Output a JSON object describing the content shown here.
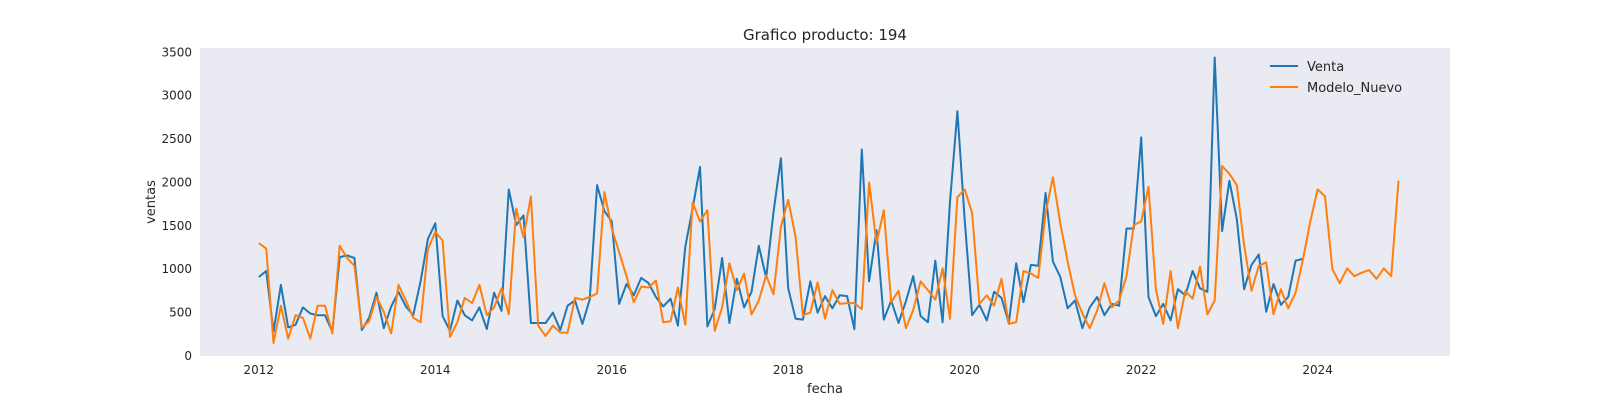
{
  "chart_data": {
    "type": "line",
    "title": "Grafico producto: 194",
    "xlabel": "fecha",
    "ylabel": "ventas",
    "x_ticks": [
      "2012",
      "2014",
      "2016",
      "2018",
      "2020",
      "2022",
      "2024"
    ],
    "y_ticks": [
      "0",
      "500",
      "1000",
      "1500",
      "2000",
      "2500",
      "3000",
      "3500"
    ],
    "xlim": [
      "2011-05",
      "2025-07"
    ],
    "ylim": [
      0,
      3550
    ],
    "grid": false,
    "legend_position": "top-right",
    "colors": {
      "plot_background": "#eaeaf2",
      "venta": "#1f77b4",
      "modelo_nuevo": "#ff7f0e"
    },
    "series": [
      {
        "name": "Venta",
        "start": "2012-01",
        "values": [
          910,
          980,
          280,
          820,
          330,
          360,
          560,
          490,
          470,
          470,
          280,
          1140,
          1160,
          1130,
          300,
          440,
          730,
          320,
          570,
          740,
          570,
          470,
          860,
          1350,
          1530,
          460,
          290,
          640,
          470,
          410,
          560,
          310,
          730,
          520,
          1920,
          1510,
          1620,
          380,
          380,
          380,
          500,
          300,
          580,
          640,
          370,
          650,
          1970,
          1670,
          1550,
          600,
          830,
          700,
          900,
          840,
          680,
          570,
          660,
          350,
          1260,
          1700,
          2180,
          340,
          540,
          1130,
          380,
          890,
          560,
          740,
          1270,
          900,
          1660,
          2280,
          780,
          430,
          420,
          860,
          500,
          690,
          550,
          700,
          690,
          310,
          2380,
          860,
          1450,
          420,
          640,
          380,
          630,
          920,
          460,
          390,
          1100,
          390,
          1780,
          2820,
          1570,
          470,
          590,
          410,
          740,
          670,
          380,
          1070,
          620,
          1050,
          1040,
          1880,
          1090,
          910,
          550,
          640,
          320,
          560,
          680,
          470,
          600,
          580,
          1470,
          1470,
          2520,
          680,
          460,
          600,
          410,
          770,
          700,
          980,
          780,
          740,
          3440,
          1440,
          2020,
          1580,
          770,
          1050,
          1170,
          510,
          830,
          590,
          680,
          1100,
          1120
        ]
      },
      {
        "name": "Modelo_Nuevo",
        "start": "2012-01",
        "values": [
          1300,
          1240,
          150,
          580,
          200,
          470,
          440,
          200,
          580,
          580,
          260,
          1270,
          1130,
          1040,
          330,
          400,
          680,
          510,
          260,
          820,
          640,
          440,
          390,
          1230,
          1430,
          1330,
          220,
          390,
          670,
          610,
          820,
          470,
          560,
          780,
          480,
          1700,
          1370,
          1840,
          350,
          230,
          350,
          270,
          270,
          670,
          650,
          680,
          720,
          1890,
          1470,
          1200,
          920,
          620,
          800,
          790,
          870,
          390,
          400,
          790,
          360,
          1770,
          1550,
          1680,
          290,
          560,
          1070,
          760,
          950,
          480,
          640,
          930,
          710,
          1490,
          1800,
          1370,
          470,
          500,
          850,
          430,
          760,
          600,
          610,
          610,
          540,
          2000,
          1300,
          1680,
          620,
          750,
          320,
          530,
          860,
          760,
          650,
          1010,
          430,
          1830,
          1920,
          1650,
          600,
          700,
          580,
          890,
          370,
          390,
          980,
          950,
          900,
          1650,
          2060,
          1530,
          1090,
          700,
          490,
          320,
          520,
          840,
          560,
          640,
          920,
          1510,
          1550,
          1950,
          770,
          370,
          980,
          320,
          750,
          660,
          1030,
          480,
          640,
          2190,
          2100,
          1970,
          1280,
          750,
          1040,
          1080,
          480,
          770,
          550,
          730,
          1110,
          1550,
          1920,
          1840,
          1000,
          840,
          1010,
          920,
          960,
          990,
          890,
          1010,
          920,
          2020
        ]
      }
    ]
  }
}
